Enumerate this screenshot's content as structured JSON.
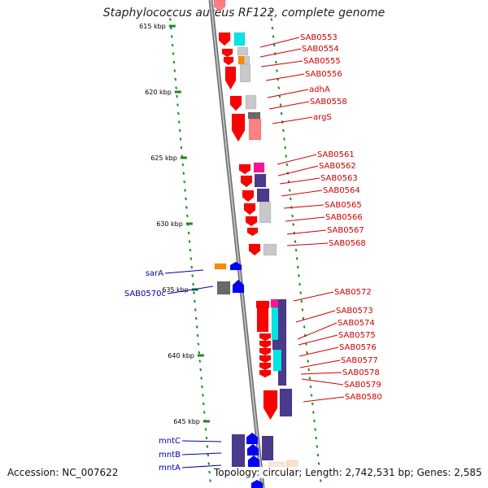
{
  "title": "Staphylococcus aureus RF122, complete genome",
  "footer": {
    "accession": "Accession: NC_007622",
    "summary": "Topology: circular; Length: 2,742,531 bp; Genes: 2,585"
  },
  "colors": {
    "axis_outer": "#6e6e6e",
    "axis_inner": "#bdbdbd",
    "tick_green": "#1e8a1e",
    "forward_label": "#cc0000",
    "reverse_label": "#0000aa",
    "red": "#ff0000",
    "cyan": "#00e6e6",
    "magenta": "#ff1493",
    "orange": "#ff8c00",
    "purple": "#4b3a8c",
    "light_gray": "#c8c8c8",
    "dark_gray": "#6a6a6a",
    "blue": "#0000ff",
    "salmon": "#ff8080"
  },
  "kbp_ticks": [
    "615 kbp",
    "620 kbp",
    "625 kbp",
    "630 kbp",
    "635 kbp",
    "640 kbp",
    "645 kbp"
  ],
  "forward_genes": [
    "SAB0553",
    "SAB0554",
    "SAB0555",
    "SAB0556",
    "adhA",
    "SAB0558",
    "argS",
    "SAB0561",
    "SAB0562",
    "SAB0563",
    "SAB0564",
    "SAB0565",
    "SAB0566",
    "SAB0567",
    "SAB0568",
    "SAB0572",
    "SAB0573",
    "SAB0574",
    "SAB0575",
    "SAB0576",
    "SAB0577",
    "SAB0578",
    "SAB0579",
    "SAB0580"
  ],
  "reverse_genes": [
    "sarA",
    "SAB0570c",
    "mntC",
    "mntB",
    "mntA"
  ]
}
